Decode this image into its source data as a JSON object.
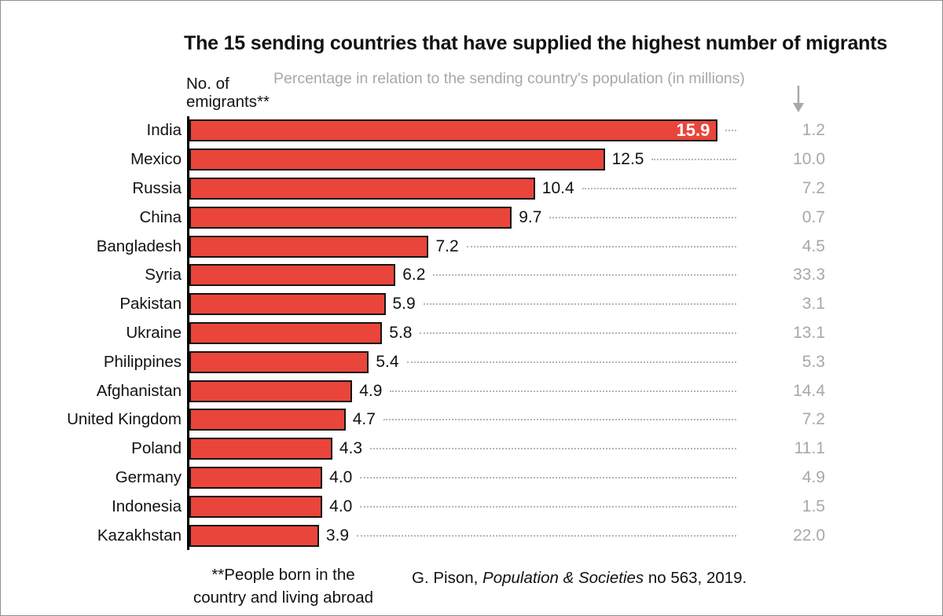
{
  "title": "The 15 sending countries that have supplied the highest number of migrants",
  "subtitle": "Percentage in relation to the sending country's population (in millions)",
  "axis_label": {
    "line1": "No. of",
    "line2": "emigrants**"
  },
  "colors": {
    "bar_fill": "#E9453A",
    "bar_border": "#141414",
    "gray_text": "#a8a8a8",
    "title_text": "#121212",
    "frame_border": "#8f8f8f"
  },
  "chart_data": {
    "type": "bar",
    "orientation": "horizontal",
    "title": "The 15 sending countries that have supplied the highest number of migrants",
    "xlabel": "",
    "ylabel": "No. of emigrants** (in millions)",
    "categories": [
      "India",
      "Mexico",
      "Russia",
      "China",
      "Bangladesh",
      "Syria",
      "Pakistan",
      "Ukraine",
      "Philippines",
      "Afghanistan",
      "United Kingdom",
      "Poland",
      "Germany",
      "Indonesia",
      "Kazakhstan"
    ],
    "series": [
      {
        "name": "No. of emigrants (millions)",
        "values": [
          15.9,
          12.5,
          10.4,
          9.7,
          7.2,
          6.2,
          5.9,
          5.8,
          5.4,
          4.9,
          4.7,
          4.3,
          4.0,
          4.0,
          3.9
        ],
        "labels": [
          "15.9",
          "12.5",
          "10.4",
          "9.7",
          "7.2",
          "6.2",
          "5.9",
          "5.8",
          "5.4",
          "4.9",
          "4.7",
          "4.3",
          "4.0",
          "4.0",
          "3.9"
        ]
      },
      {
        "name": "Percentage in relation to the sending country's population",
        "values": [
          1.2,
          10.0,
          7.2,
          0.7,
          4.5,
          33.3,
          3.1,
          13.1,
          5.3,
          14.4,
          7.2,
          11.1,
          4.9,
          1.5,
          22.0
        ],
        "labels": [
          "1.2",
          "10.0",
          "7.2",
          "0.7",
          "4.5",
          "33.3",
          "3.1",
          "13.1",
          "5.3",
          "14.4",
          "7.2",
          "11.1",
          "4.9",
          "1.5",
          "22.0"
        ]
      }
    ],
    "xmax_hint": 16.6,
    "inside_value_index": 0,
    "grid": false,
    "legend_position": "none",
    "bar_color": "#E9453A",
    "secondary_value_color": "#a8a8a8"
  },
  "footnote": {
    "line1": "**People born in the",
    "line2": "country and living abroad"
  },
  "source": {
    "prefix": "G. Pison, ",
    "italic": "Population & Societies",
    "suffix": " no 563, 2019."
  }
}
